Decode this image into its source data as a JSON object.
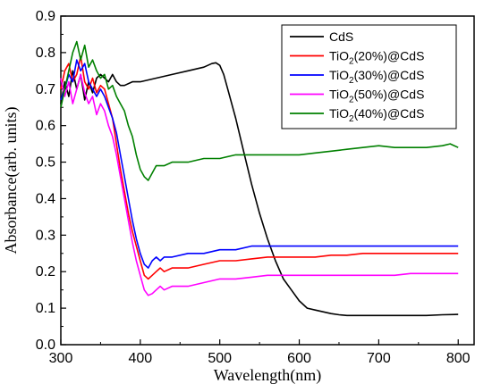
{
  "chart_data": {
    "type": "line",
    "title": "",
    "xlabel": "Wavelength(nm)",
    "ylabel": "Absorbance(arb. units)",
    "xlim": [
      300,
      820
    ],
    "ylim": [
      0.0,
      0.9
    ],
    "x_ticks": [
      300,
      400,
      500,
      600,
      700,
      800
    ],
    "y_ticks": [
      0.0,
      0.1,
      0.2,
      0.3,
      0.4,
      0.5,
      0.6,
      0.7,
      0.8,
      0.9
    ],
    "grid": false,
    "legend_position": "top-right",
    "series": [
      {
        "name": "CdS",
        "legend": {
          "main": "CdS",
          "sub": "",
          "tail": ""
        },
        "color": "#000000",
        "points": [
          [
            300,
            0.66
          ],
          [
            305,
            0.72
          ],
          [
            310,
            0.68
          ],
          [
            315,
            0.75
          ],
          [
            320,
            0.7
          ],
          [
            325,
            0.74
          ],
          [
            330,
            0.67
          ],
          [
            335,
            0.72
          ],
          [
            340,
            0.69
          ],
          [
            345,
            0.73
          ],
          [
            350,
            0.74
          ],
          [
            355,
            0.73
          ],
          [
            360,
            0.72
          ],
          [
            365,
            0.74
          ],
          [
            370,
            0.72
          ],
          [
            375,
            0.71
          ],
          [
            380,
            0.71
          ],
          [
            390,
            0.72
          ],
          [
            400,
            0.72
          ],
          [
            420,
            0.73
          ],
          [
            440,
            0.74
          ],
          [
            460,
            0.75
          ],
          [
            480,
            0.76
          ],
          [
            490,
            0.77
          ],
          [
            495,
            0.772
          ],
          [
            500,
            0.765
          ],
          [
            505,
            0.74
          ],
          [
            510,
            0.7
          ],
          [
            520,
            0.62
          ],
          [
            530,
            0.53
          ],
          [
            540,
            0.44
          ],
          [
            550,
            0.36
          ],
          [
            560,
            0.29
          ],
          [
            570,
            0.23
          ],
          [
            580,
            0.18
          ],
          [
            590,
            0.15
          ],
          [
            600,
            0.12
          ],
          [
            610,
            0.1
          ],
          [
            620,
            0.095
          ],
          [
            630,
            0.09
          ],
          [
            640,
            0.085
          ],
          [
            650,
            0.082
          ],
          [
            660,
            0.08
          ],
          [
            680,
            0.08
          ],
          [
            700,
            0.08
          ],
          [
            720,
            0.08
          ],
          [
            740,
            0.08
          ],
          [
            760,
            0.08
          ],
          [
            780,
            0.082
          ],
          [
            800,
            0.083
          ]
        ]
      },
      {
        "name": "TiO2(20%)@CdS",
        "legend": {
          "main": "TiO",
          "sub": "2",
          "tail": "(20%)@CdS"
        },
        "color": "#ff0000",
        "points": [
          [
            300,
            0.7
          ],
          [
            305,
            0.75
          ],
          [
            310,
            0.77
          ],
          [
            315,
            0.72
          ],
          [
            320,
            0.74
          ],
          [
            325,
            0.79
          ],
          [
            330,
            0.72
          ],
          [
            335,
            0.7
          ],
          [
            340,
            0.73
          ],
          [
            345,
            0.69
          ],
          [
            350,
            0.71
          ],
          [
            355,
            0.7
          ],
          [
            360,
            0.66
          ],
          [
            365,
            0.62
          ],
          [
            370,
            0.55
          ],
          [
            375,
            0.48
          ],
          [
            380,
            0.42
          ],
          [
            385,
            0.36
          ],
          [
            390,
            0.31
          ],
          [
            395,
            0.27
          ],
          [
            400,
            0.23
          ],
          [
            405,
            0.19
          ],
          [
            410,
            0.18
          ],
          [
            415,
            0.19
          ],
          [
            420,
            0.2
          ],
          [
            425,
            0.21
          ],
          [
            430,
            0.2
          ],
          [
            440,
            0.21
          ],
          [
            460,
            0.21
          ],
          [
            480,
            0.22
          ],
          [
            500,
            0.23
          ],
          [
            520,
            0.23
          ],
          [
            540,
            0.235
          ],
          [
            560,
            0.24
          ],
          [
            580,
            0.24
          ],
          [
            600,
            0.24
          ],
          [
            620,
            0.24
          ],
          [
            640,
            0.245
          ],
          [
            660,
            0.245
          ],
          [
            680,
            0.25
          ],
          [
            700,
            0.25
          ],
          [
            720,
            0.25
          ],
          [
            740,
            0.25
          ],
          [
            760,
            0.25
          ],
          [
            780,
            0.25
          ],
          [
            800,
            0.25
          ]
        ]
      },
      {
        "name": "TiO2(30%)@CdS",
        "legend": {
          "main": "TiO",
          "sub": "2",
          "tail": "(30%)@CdS"
        },
        "color": "#0000ff",
        "points": [
          [
            300,
            0.67
          ],
          [
            305,
            0.7
          ],
          [
            310,
            0.74
          ],
          [
            315,
            0.72
          ],
          [
            320,
            0.78
          ],
          [
            325,
            0.75
          ],
          [
            330,
            0.77
          ],
          [
            335,
            0.72
          ],
          [
            340,
            0.7
          ],
          [
            345,
            0.68
          ],
          [
            350,
            0.7
          ],
          [
            355,
            0.68
          ],
          [
            360,
            0.65
          ],
          [
            365,
            0.62
          ],
          [
            370,
            0.58
          ],
          [
            375,
            0.52
          ],
          [
            380,
            0.46
          ],
          [
            385,
            0.4
          ],
          [
            390,
            0.34
          ],
          [
            395,
            0.29
          ],
          [
            400,
            0.25
          ],
          [
            405,
            0.22
          ],
          [
            410,
            0.21
          ],
          [
            415,
            0.23
          ],
          [
            420,
            0.24
          ],
          [
            425,
            0.23
          ],
          [
            430,
            0.24
          ],
          [
            440,
            0.24
          ],
          [
            460,
            0.25
          ],
          [
            480,
            0.25
          ],
          [
            500,
            0.26
          ],
          [
            520,
            0.26
          ],
          [
            540,
            0.27
          ],
          [
            560,
            0.27
          ],
          [
            580,
            0.27
          ],
          [
            600,
            0.27
          ],
          [
            620,
            0.27
          ],
          [
            640,
            0.27
          ],
          [
            660,
            0.27
          ],
          [
            680,
            0.27
          ],
          [
            700,
            0.27
          ],
          [
            720,
            0.27
          ],
          [
            740,
            0.27
          ],
          [
            760,
            0.27
          ],
          [
            780,
            0.27
          ],
          [
            800,
            0.27
          ]
        ]
      },
      {
        "name": "TiO2(50%)@CdS",
        "legend": {
          "main": "TiO",
          "sub": "2",
          "tail": "(50%)@CdS"
        },
        "color": "#ff00ff",
        "points": [
          [
            300,
            0.73
          ],
          [
            305,
            0.68
          ],
          [
            310,
            0.72
          ],
          [
            315,
            0.66
          ],
          [
            320,
            0.7
          ],
          [
            325,
            0.74
          ],
          [
            330,
            0.69
          ],
          [
            335,
            0.66
          ],
          [
            340,
            0.68
          ],
          [
            345,
            0.63
          ],
          [
            350,
            0.66
          ],
          [
            355,
            0.64
          ],
          [
            360,
            0.6
          ],
          [
            365,
            0.57
          ],
          [
            370,
            0.52
          ],
          [
            375,
            0.46
          ],
          [
            380,
            0.4
          ],
          [
            385,
            0.34
          ],
          [
            390,
            0.28
          ],
          [
            395,
            0.23
          ],
          [
            400,
            0.19
          ],
          [
            405,
            0.15
          ],
          [
            410,
            0.135
          ],
          [
            415,
            0.14
          ],
          [
            420,
            0.15
          ],
          [
            425,
            0.16
          ],
          [
            430,
            0.15
          ],
          [
            440,
            0.16
          ],
          [
            460,
            0.16
          ],
          [
            480,
            0.17
          ],
          [
            500,
            0.18
          ],
          [
            520,
            0.18
          ],
          [
            540,
            0.185
          ],
          [
            560,
            0.19
          ],
          [
            580,
            0.19
          ],
          [
            600,
            0.19
          ],
          [
            620,
            0.19
          ],
          [
            640,
            0.19
          ],
          [
            660,
            0.19
          ],
          [
            680,
            0.19
          ],
          [
            700,
            0.19
          ],
          [
            720,
            0.19
          ],
          [
            740,
            0.195
          ],
          [
            760,
            0.195
          ],
          [
            780,
            0.195
          ],
          [
            800,
            0.195
          ]
        ]
      },
      {
        "name": "TiO2(40%)@CdS",
        "legend": {
          "main": "TiO",
          "sub": "2",
          "tail": "(40%)@CdS"
        },
        "color": "#008000",
        "points": [
          [
            300,
            0.65
          ],
          [
            305,
            0.7
          ],
          [
            310,
            0.75
          ],
          [
            315,
            0.8
          ],
          [
            320,
            0.83
          ],
          [
            325,
            0.78
          ],
          [
            330,
            0.82
          ],
          [
            335,
            0.76
          ],
          [
            340,
            0.78
          ],
          [
            345,
            0.75
          ],
          [
            350,
            0.73
          ],
          [
            355,
            0.74
          ],
          [
            360,
            0.7
          ],
          [
            365,
            0.71
          ],
          [
            370,
            0.68
          ],
          [
            375,
            0.66
          ],
          [
            380,
            0.64
          ],
          [
            385,
            0.6
          ],
          [
            390,
            0.57
          ],
          [
            395,
            0.52
          ],
          [
            400,
            0.48
          ],
          [
            405,
            0.46
          ],
          [
            410,
            0.45
          ],
          [
            415,
            0.47
          ],
          [
            420,
            0.49
          ],
          [
            430,
            0.49
          ],
          [
            440,
            0.5
          ],
          [
            460,
            0.5
          ],
          [
            480,
            0.51
          ],
          [
            500,
            0.51
          ],
          [
            520,
            0.52
          ],
          [
            540,
            0.52
          ],
          [
            560,
            0.52
          ],
          [
            580,
            0.52
          ],
          [
            600,
            0.52
          ],
          [
            620,
            0.525
          ],
          [
            640,
            0.53
          ],
          [
            660,
            0.535
          ],
          [
            680,
            0.54
          ],
          [
            700,
            0.545
          ],
          [
            720,
            0.54
          ],
          [
            740,
            0.54
          ],
          [
            760,
            0.54
          ],
          [
            780,
            0.545
          ],
          [
            790,
            0.55
          ],
          [
            800,
            0.54
          ]
        ]
      }
    ]
  }
}
